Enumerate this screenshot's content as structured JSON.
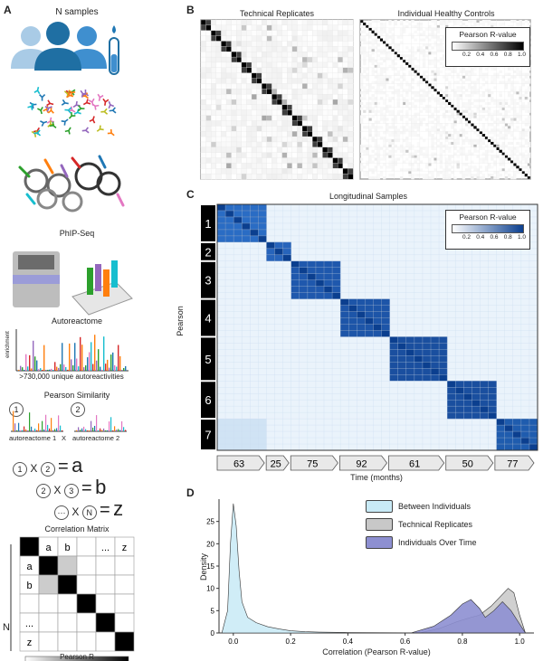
{
  "panel_a": {
    "letter": "A",
    "title": "N samples",
    "phip_label": "PhIP-Seq",
    "autoreactome_label": "Autoreactome",
    "enrichment_label": "enrichment",
    "unique_label": ">730,000 unique autoreactivities",
    "pearson_similarity_label": "Pearson Similarity",
    "autoreactome_1": "autoreactome 1",
    "autoreactome_2": "autoreactome 2",
    "times": "X",
    "circle_1": "1",
    "circle_2": "2",
    "eq1": {
      "left": "1",
      "right": "2",
      "result": "a"
    },
    "eq2": {
      "left": "2",
      "right": "3",
      "result": "b"
    },
    "eq3": {
      "left": "···",
      "right": "N",
      "result": "z"
    },
    "eq_sign": "=",
    "correlation_matrix_label": "Correlation Matrix",
    "matrix_headers": [
      "a",
      "b",
      "",
      "...",
      "z"
    ],
    "matrix_rows": [
      "a",
      "b",
      "",
      "...",
      "z"
    ],
    "n_label": "N",
    "pearson_r_label": "Pearson R",
    "colors": {
      "person_light": "#a9cbe6",
      "person_dark": "#1f6fa3",
      "person_mid": "#3f8fcf",
      "tube": "#1f77b4"
    }
  },
  "panel_b": {
    "letter": "B",
    "title_left": "Technical Replicates",
    "title_right": "Individual Healthy Controls",
    "legend_title": "Pearson R-value",
    "legend_ticks": [
      "0.2",
      "0.4",
      "0.6",
      "0.8",
      "1.0"
    ]
  },
  "panel_c": {
    "letter": "C",
    "title": "Longitudinal Samples",
    "ylabel": "Pearson",
    "persons": [
      "1",
      "2",
      "3",
      "4",
      "5",
      "6",
      "7"
    ],
    "months": [
      "63",
      "25",
      "75",
      "92",
      "61",
      "50",
      "77"
    ],
    "xlabel": "Time (months)",
    "legend_title": "Pearson R-value",
    "legend_ticks": [
      "0.2",
      "0.4",
      "0.6",
      "0.8",
      "1.0"
    ],
    "block_colors": [
      "#2a6cc4",
      "#2764bb",
      "#1f58ad",
      "#1d55a8",
      "#1a4f9f",
      "#1a4f9f",
      "#1f5cae"
    ]
  },
  "panel_d": {
    "letter": "D",
    "ylabel": "Density",
    "xlabel": "Correlation (Pearson R-value)",
    "legend": [
      {
        "name": "Between Individuals",
        "color": "#c8eaf6"
      },
      {
        "name": "Technical Replicates",
        "color": "#c8c8c8"
      },
      {
        "name": "Individuals Over Time",
        "color": "#8d8fd1"
      }
    ]
  },
  "chart_data": {
    "type": "area",
    "xlabel": "Correlation (Pearson R-value)",
    "ylabel": "Density",
    "xlim": [
      -0.05,
      1.05
    ],
    "ylim": [
      0,
      30
    ],
    "xticks": [
      "0.0",
      "0.2",
      "0.4",
      "0.6",
      "0.8",
      "1.0"
    ],
    "yticks": [
      "0",
      "5",
      "10",
      "15",
      "20",
      "25"
    ],
    "series": [
      {
        "name": "Between Individuals",
        "x": [
          -0.04,
          -0.02,
          -0.01,
          0.0,
          0.01,
          0.02,
          0.03,
          0.05,
          0.08,
          0.12,
          0.16,
          0.2,
          0.25,
          0.3,
          0.4,
          0.6,
          0.8,
          1.0
        ],
        "y": [
          0,
          5,
          20,
          29,
          24,
          14,
          7,
          3.5,
          2.3,
          1.4,
          0.9,
          0.5,
          0.3,
          0.2,
          0.1,
          0.05,
          0.02,
          0
        ]
      },
      {
        "name": "Technical Replicates",
        "x": [
          0.65,
          0.72,
          0.78,
          0.83,
          0.86,
          0.9,
          0.93,
          0.96,
          0.98,
          1.0,
          1.02
        ],
        "y": [
          0,
          1,
          2.5,
          3.5,
          4,
          6,
          8,
          10,
          9,
          4,
          0
        ]
      },
      {
        "name": "Individuals Over Time",
        "x": [
          0.62,
          0.7,
          0.76,
          0.8,
          0.83,
          0.86,
          0.88,
          0.91,
          0.94,
          0.97,
          1.0,
          1.02
        ],
        "y": [
          0,
          1.5,
          4,
          6.5,
          7.5,
          5.5,
          3.5,
          5,
          7,
          5,
          2,
          0
        ]
      }
    ]
  }
}
